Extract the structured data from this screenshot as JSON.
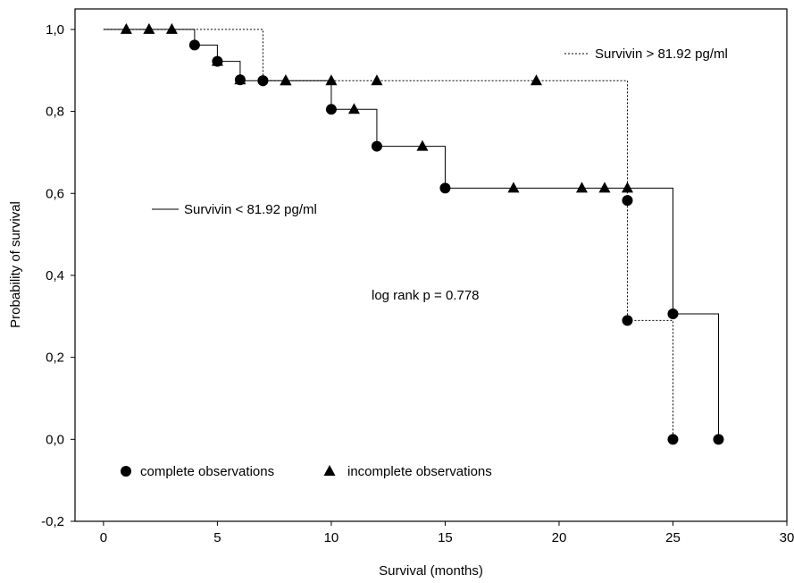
{
  "chart_data": {
    "type": "line",
    "subtype": "kaplan-meier",
    "xlabel": "Survival (months)",
    "ylabel": "Probability of survival",
    "xlim": [
      -1.25,
      30
    ],
    "ylim": [
      -0.2,
      1.05
    ],
    "xticks": [
      0,
      5,
      10,
      15,
      20,
      25,
      30
    ],
    "xtick_labels": [
      "0",
      "5",
      "10",
      "15",
      "20",
      "25",
      "30"
    ],
    "yticks": [
      -0.2,
      0.0,
      0.2,
      0.4,
      0.6,
      0.8,
      1.0
    ],
    "ytick_labels": [
      "-0,2",
      "0,0",
      "0,2",
      "0,4",
      "0,6",
      "0,8",
      "1,0"
    ],
    "grid": false,
    "annotations": {
      "pvalue": "log rank p = 0.778"
    },
    "series": [
      {
        "name": "Survivin < 81.92 pg/ml",
        "line_style": "solid",
        "legend_position": "middle-left",
        "steps": [
          [
            0,
            1.0
          ],
          [
            4,
            0.962
          ],
          [
            5,
            0.922
          ],
          [
            6,
            0.875
          ],
          [
            10,
            0.805
          ],
          [
            12,
            0.715
          ],
          [
            15,
            0.613
          ],
          [
            25,
            0.306
          ],
          [
            27,
            0.0
          ]
        ],
        "complete": [
          [
            4,
            0.962
          ],
          [
            5,
            0.922
          ],
          [
            6,
            0.877
          ],
          [
            7,
            0.875
          ],
          [
            10,
            0.805
          ],
          [
            12,
            0.715
          ],
          [
            15,
            0.613
          ],
          [
            25,
            0.306
          ],
          [
            27,
            0.0
          ]
        ],
        "censored": [
          [
            1,
            1.0
          ],
          [
            2,
            1.0
          ],
          [
            3,
            1.0
          ],
          [
            6,
            0.877
          ],
          [
            8,
            0.875
          ],
          [
            11,
            0.805
          ],
          [
            14,
            0.715
          ],
          [
            18,
            0.613
          ],
          [
            21,
            0.613
          ],
          [
            22,
            0.613
          ],
          [
            23,
            0.613
          ]
        ]
      },
      {
        "name": "Survivin > 81.92 pg/ml",
        "line_style": "dashed",
        "legend_position": "top-right",
        "steps": [
          [
            0,
            1.0
          ],
          [
            7,
            0.875
          ],
          [
            23,
            0.583
          ],
          [
            23,
            0.29
          ],
          [
            25,
            0.0
          ]
        ],
        "complete": [
          [
            7,
            0.875
          ],
          [
            23,
            0.583
          ],
          [
            23,
            0.29
          ],
          [
            25,
            0.0
          ]
        ],
        "censored": [
          [
            5,
            0.922
          ],
          [
            8,
            0.875
          ],
          [
            10,
            0.875
          ],
          [
            12,
            0.875
          ],
          [
            19,
            0.875
          ]
        ]
      }
    ],
    "marker_legend": {
      "complete_label": "complete observations",
      "incomplete_label": "incomplete observations",
      "position": "bottom-left"
    }
  }
}
